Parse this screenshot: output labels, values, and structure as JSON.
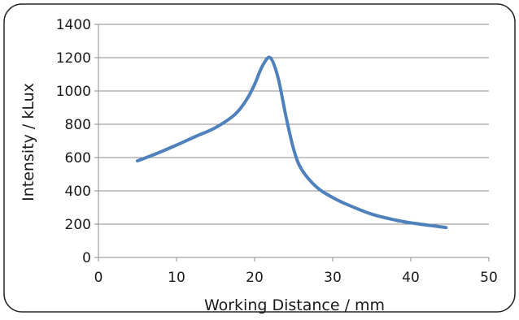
{
  "chart_data": {
    "type": "line",
    "title": "",
    "xlabel": "Working Distance / mm",
    "ylabel": "Intensity / kLux",
    "xlim": [
      0,
      50
    ],
    "ylim": [
      0,
      1400
    ],
    "x_ticks": [
      "0",
      "10",
      "20",
      "30",
      "40",
      "50"
    ],
    "y_ticks": [
      "0",
      "200",
      "400",
      "600",
      "800",
      "1000",
      "1200",
      "1400"
    ],
    "grid": "horizontal",
    "legend": "none",
    "series": [
      {
        "color": "#4f81bd",
        "points": [
          [
            5,
            580
          ],
          [
            7.5,
            625
          ],
          [
            10,
            675
          ],
          [
            12.5,
            728
          ],
          [
            15,
            780
          ],
          [
            17.5,
            860
          ],
          [
            19,
            950
          ],
          [
            20,
            1040
          ],
          [
            21,
            1150
          ],
          [
            22,
            1200
          ],
          [
            23,
            1080
          ],
          [
            24,
            850
          ],
          [
            25,
            650
          ],
          [
            26,
            530
          ],
          [
            28,
            420
          ],
          [
            30,
            360
          ],
          [
            32,
            315
          ],
          [
            35,
            260
          ],
          [
            38,
            225
          ],
          [
            40,
            208
          ],
          [
            42.5,
            192
          ],
          [
            44.5,
            180
          ]
        ]
      }
    ]
  }
}
